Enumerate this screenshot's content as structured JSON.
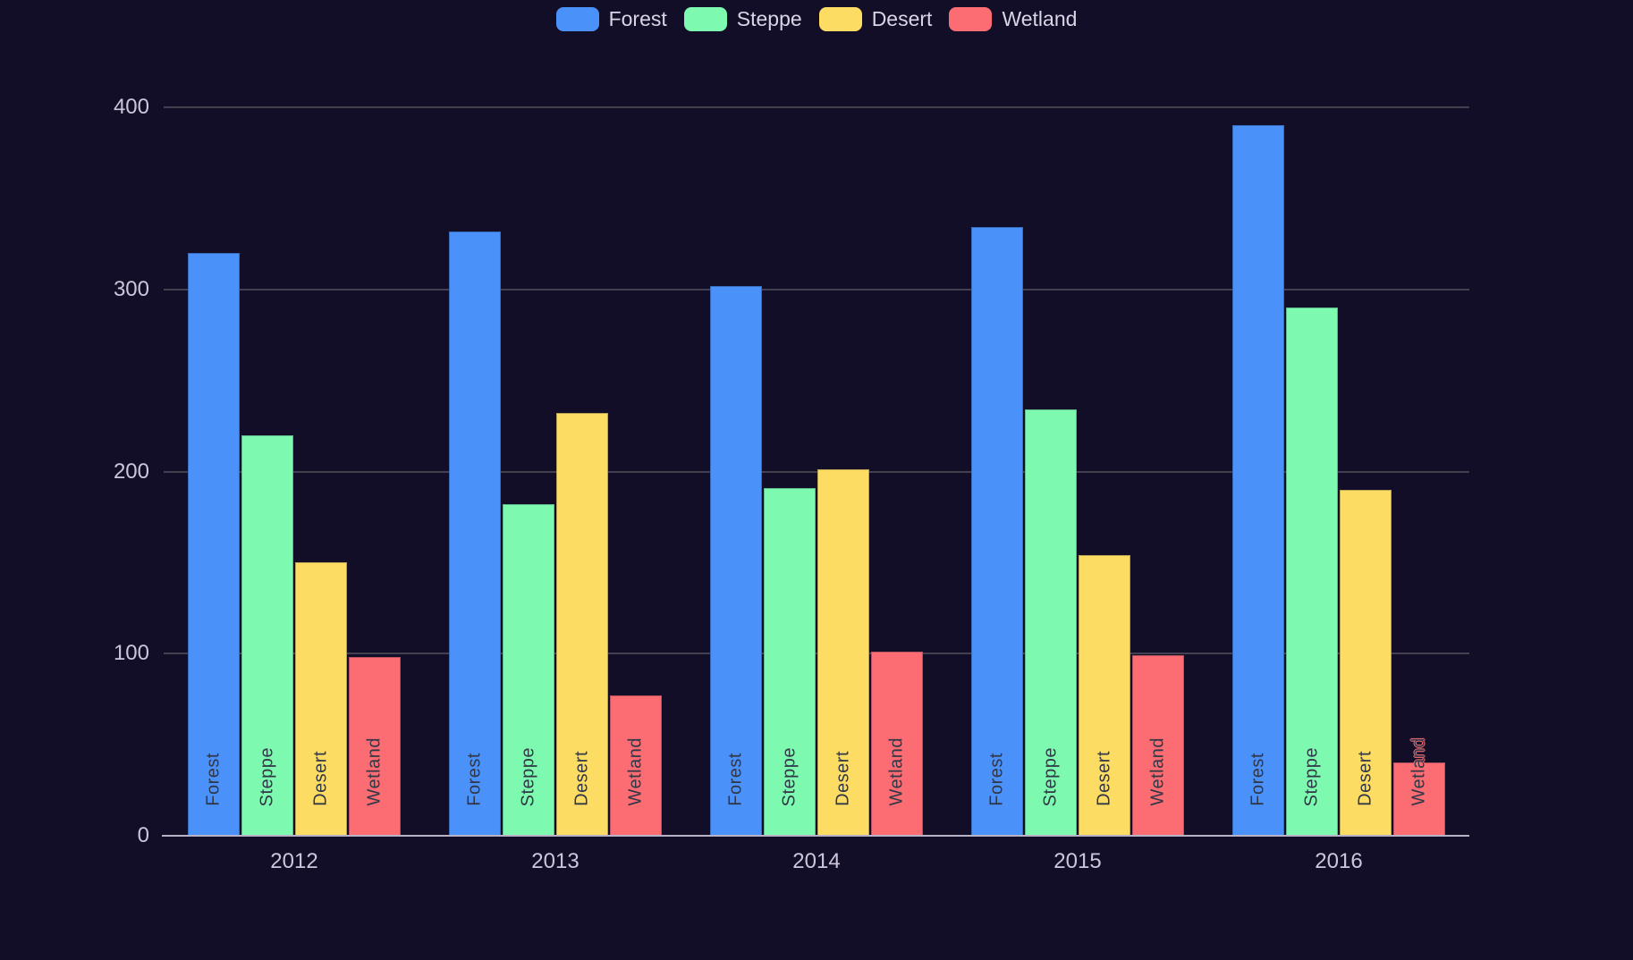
{
  "chart_data": {
    "type": "bar",
    "title": "",
    "categories": [
      "2012",
      "2013",
      "2014",
      "2015",
      "2016"
    ],
    "series": [
      {
        "name": "Forest",
        "color": "#4a91fa",
        "values": [
          320,
          332,
          302,
          334,
          390
        ]
      },
      {
        "name": "Steppe",
        "color": "#7dfab0",
        "values": [
          220,
          182,
          191,
          234,
          290
        ]
      },
      {
        "name": "Desert",
        "color": "#fcdc62",
        "values": [
          150,
          232,
          201,
          154,
          190
        ]
      },
      {
        "name": "Wetland",
        "color": "#fc6d73",
        "values": [
          98,
          77,
          101,
          99,
          40
        ]
      }
    ],
    "xlabel": "",
    "ylabel": "",
    "ylim": [
      0,
      400
    ],
    "yticks": [
      0,
      100,
      200,
      300,
      400
    ],
    "grid": true,
    "legend_position": "top",
    "bar_label_style": "series name rendered vertically inside each bar, reading bottom-to-top"
  },
  "colors": {
    "background": "#130e27",
    "gridline": "#434050",
    "axis_baseline": "#b7b2c5",
    "axis_tick_text": "#cbc6db",
    "legend_text": "#d9d5e6",
    "bar_label_text": "#313747"
  }
}
